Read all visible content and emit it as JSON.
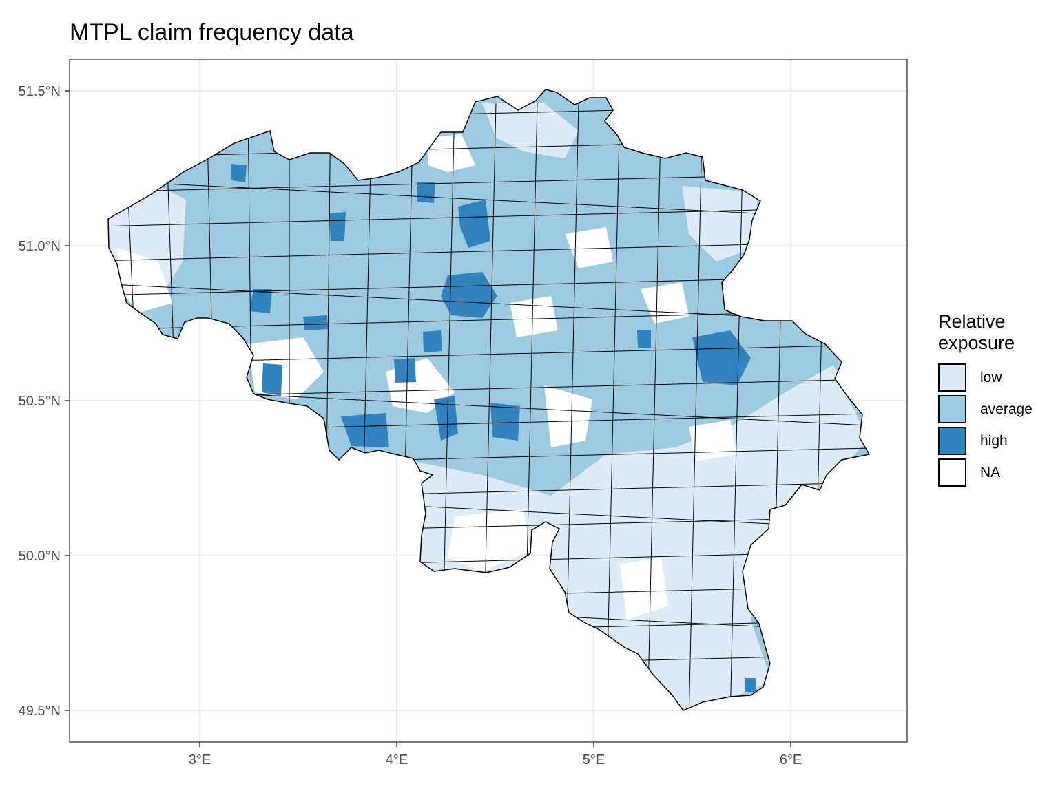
{
  "title": "MTPL claim frequency data",
  "axes": {
    "y_ticks": [
      {
        "value": 51.5,
        "label": "51.5°N"
      },
      {
        "value": 51.0,
        "label": "51.0°N"
      },
      {
        "value": 50.5,
        "label": "50.5°N"
      },
      {
        "value": 50.0,
        "label": "50.0°N"
      },
      {
        "value": 49.5,
        "label": "49.5°N"
      }
    ],
    "x_ticks": [
      {
        "value": 3,
        "label": "3°E"
      },
      {
        "value": 4,
        "label": "4°E"
      },
      {
        "value": 5,
        "label": "5°E"
      },
      {
        "value": 6,
        "label": "6°E"
      }
    ]
  },
  "legend": {
    "title_line1": "Relative",
    "title_line2": "exposure",
    "items": [
      {
        "label": "low",
        "color": "#deebf7"
      },
      {
        "label": "average",
        "color": "#9ecae1"
      },
      {
        "label": "high",
        "color": "#3182bd"
      },
      {
        "label": "NA",
        "color": "#ffffff"
      }
    ]
  }
}
